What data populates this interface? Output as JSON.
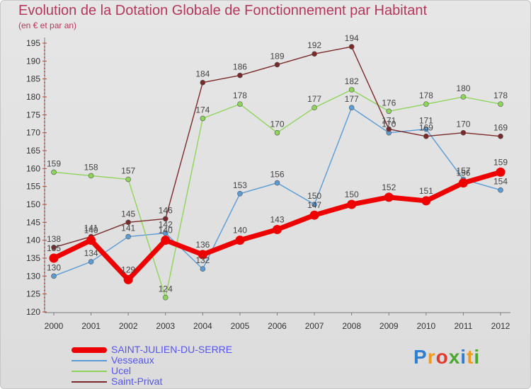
{
  "header": {
    "title": "Evolution de la Dotation Globale de Fonctionnement par Habitant",
    "subtitle": "(en € et par an)"
  },
  "logo": {
    "text": "Proxiti",
    "letters": [
      "P",
      "r",
      "o",
      "x",
      "i",
      "t",
      "i"
    ],
    "colors": [
      "#2d7fd3",
      "#f29a1b",
      "#e23b2e",
      "#4aa82f",
      "#2d7fd3",
      "#f29a1b",
      "#4aa82f"
    ]
  },
  "chart_data": {
    "type": "line",
    "title": "Evolution de la Dotation Globale de Fonctionnement par Habitant",
    "subtitle": "(en € et par an)",
    "xlabel": "",
    "ylabel": "",
    "categories": [
      "2000",
      "2001",
      "2002",
      "2003",
      "2004",
      "2005",
      "2006",
      "2007",
      "2008",
      "2009",
      "2010",
      "2011",
      "2012"
    ],
    "ylim": [
      120,
      195
    ],
    "yticks": [
      120,
      125,
      130,
      135,
      140,
      145,
      150,
      155,
      160,
      165,
      170,
      175,
      180,
      185,
      190,
      195
    ],
    "grid": false,
    "legend_position": "bottom-left",
    "series": [
      {
        "name": "SAINT-JULIEN-DU-SERRE",
        "color": "#ee0000",
        "emphasis": "thick",
        "values": [
          135,
          140,
          129,
          140,
          136,
          140,
          143,
          147,
          150,
          152,
          151,
          156,
          159
        ]
      },
      {
        "name": "Vesseaux",
        "color": "#5b9bd5",
        "emphasis": "thin",
        "values": [
          130,
          134,
          141,
          142,
          132,
          153,
          156,
          150,
          177,
          170,
          171,
          157,
          154
        ]
      },
      {
        "name": "Ucel",
        "color": "#8fd45a",
        "emphasis": "thin",
        "values": [
          159,
          158,
          157,
          124,
          174,
          178,
          170,
          177,
          182,
          176,
          178,
          180,
          178
        ]
      },
      {
        "name": "Saint-Privat",
        "color": "#7a2a2a",
        "emphasis": "thin",
        "values": [
          138,
          141,
          145,
          146,
          184,
          186,
          189,
          192,
          194,
          171,
          169,
          170,
          169
        ]
      }
    ]
  }
}
